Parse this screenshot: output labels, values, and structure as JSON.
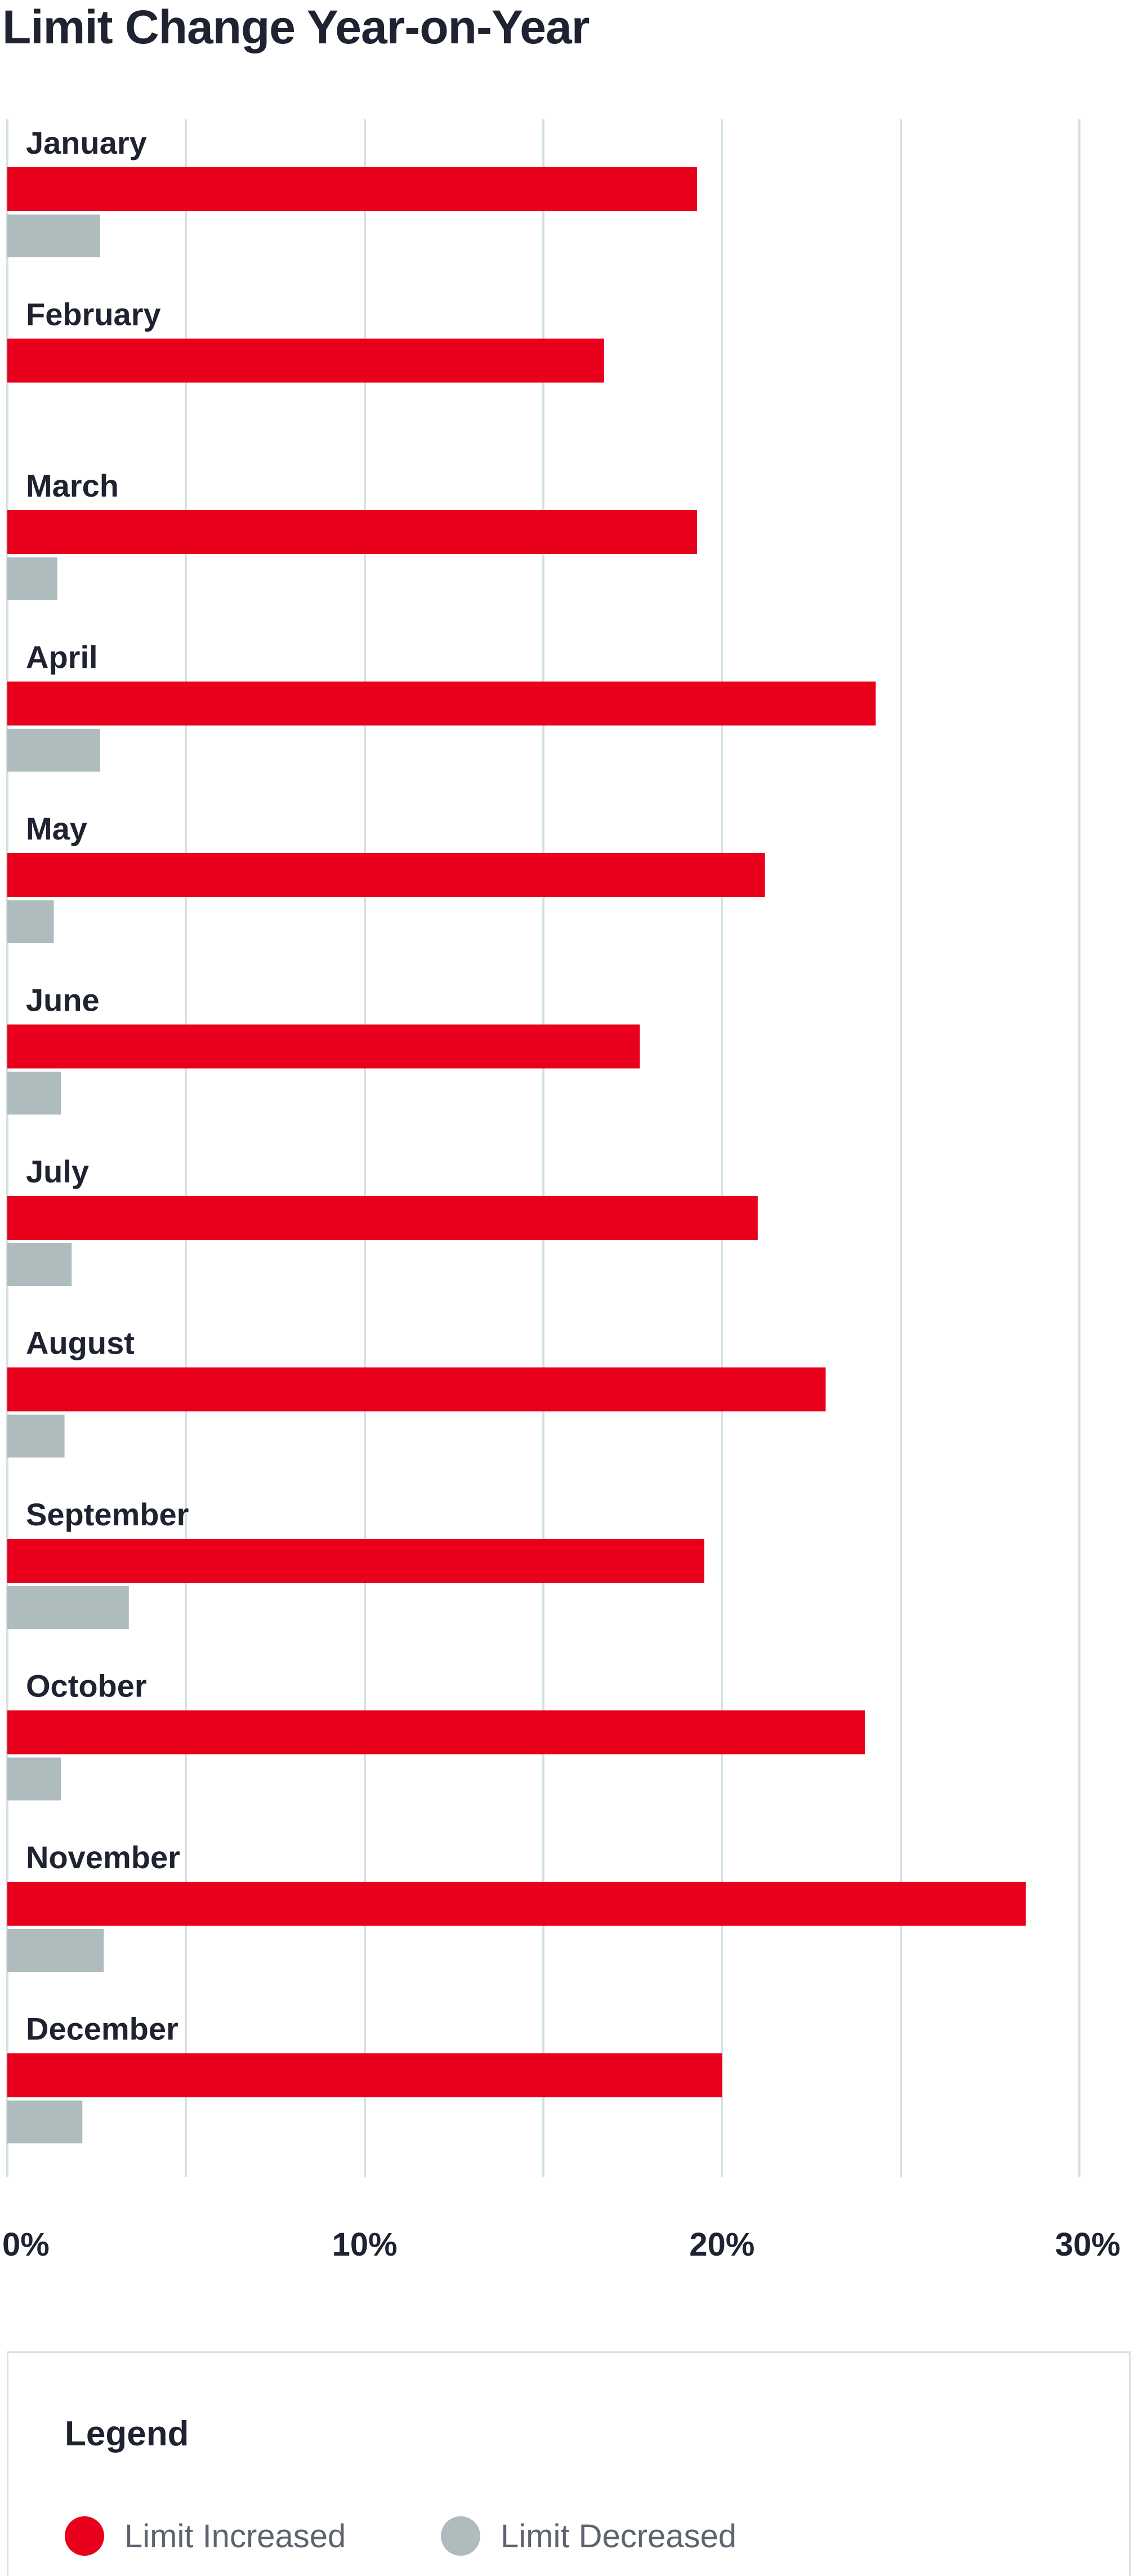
{
  "chart_data": {
    "type": "bar",
    "orientation": "horizontal",
    "title": "Limit Change Year-on-Year",
    "categories": [
      "January",
      "February",
      "March",
      "April",
      "May",
      "June",
      "July",
      "August",
      "September",
      "October",
      "November",
      "December"
    ],
    "series": [
      {
        "name": "Limit Increased",
        "color": "#e8001c",
        "values": [
          19.3,
          16.7,
          19.3,
          24.3,
          21.2,
          17.7,
          21.0,
          22.9,
          19.5,
          24.0,
          28.5,
          20.0
        ]
      },
      {
        "name": "Limit Decreased",
        "color": "#aebcbe",
        "values": [
          2.6,
          0.0,
          1.4,
          2.6,
          1.3,
          1.5,
          1.8,
          1.6,
          3.4,
          1.5,
          2.7,
          2.1
        ]
      }
    ],
    "xlim": [
      0,
      30
    ],
    "x_ticks": [
      "0%",
      "10%",
      "20%",
      "30%"
    ],
    "x_tick_values": [
      0,
      10,
      20,
      30
    ],
    "grid": true,
    "grid_color": "#d5e2e2",
    "legend": {
      "title": "Legend",
      "placement": "bottom"
    }
  }
}
